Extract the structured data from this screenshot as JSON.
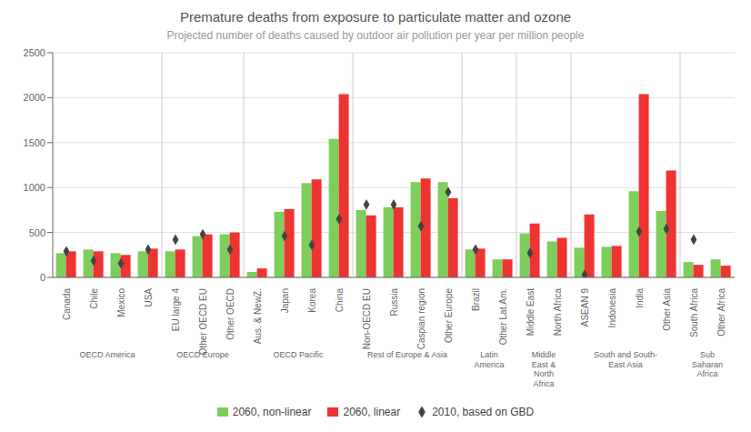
{
  "chart_data": {
    "type": "bar",
    "title": "Premature deaths from exposure to particulate matter and ozone",
    "subtitle": "Projected number of deaths caused by outdoor air pollution per year per million people",
    "categories": [
      "Canada",
      "Chile",
      "Mexico",
      "USA",
      "EU large 4",
      "Other OECD EU",
      "Other OECD",
      "Aus. & NewZ.",
      "Japan",
      "Korea",
      "China",
      "Non-OECD EU",
      "Russia",
      "Caspian region",
      "Other Europe",
      "Brazil",
      "Other Lat.Am.",
      "Middle East",
      "North Africa",
      "ASEAN 9",
      "Indonesia",
      "India",
      "Other Asia",
      "South Africa",
      "Other Africa"
    ],
    "groups": [
      {
        "label": "OECD America",
        "span": [
          0,
          3
        ]
      },
      {
        "label": "OECD Europe",
        "span": [
          4,
          6
        ]
      },
      {
        "label": "OECD Pacific",
        "span": [
          7,
          10
        ]
      },
      {
        "label": "Rest of Europe & Asia",
        "span": [
          11,
          14
        ]
      },
      {
        "label": "Latin\nAmerica",
        "span": [
          15,
          16
        ]
      },
      {
        "label": "Middle\nEast &\nNorth\nAfrica",
        "span": [
          17,
          18
        ]
      },
      {
        "label": "South and South-\nEast Asia",
        "span": [
          19,
          22
        ]
      },
      {
        "label": "Sub\nSaharan\nAfrica",
        "span": [
          23,
          24
        ]
      }
    ],
    "series": [
      {
        "name": "2060, non-linear",
        "type": "bar",
        "color": "#7dce5a",
        "values": [
          270,
          310,
          270,
          290,
          290,
          460,
          480,
          60,
          730,
          1050,
          1540,
          750,
          780,
          1060,
          1060,
          310,
          200,
          490,
          400,
          330,
          340,
          960,
          740,
          170,
          200
        ]
      },
      {
        "name": "2060, linear",
        "type": "bar",
        "color": "#ee3333",
        "values": [
          290,
          290,
          250,
          320,
          310,
          480,
          500,
          100,
          760,
          1090,
          2040,
          690,
          780,
          1100,
          880,
          320,
          200,
          600,
          440,
          700,
          350,
          2040,
          1190,
          140,
          130
        ]
      },
      {
        "name": "2010, based on GBD",
        "type": "scatter",
        "marker": "diamond",
        "color": "#444444",
        "values": [
          290,
          185,
          155,
          310,
          420,
          480,
          310,
          null,
          460,
          360,
          650,
          810,
          810,
          570,
          950,
          310,
          null,
          270,
          null,
          30,
          null,
          510,
          540,
          420,
          null
        ]
      }
    ],
    "ylim": [
      0,
      2500
    ],
    "yticks": [
      0,
      500,
      1000,
      1500,
      2000,
      2500
    ],
    "grid": true
  }
}
